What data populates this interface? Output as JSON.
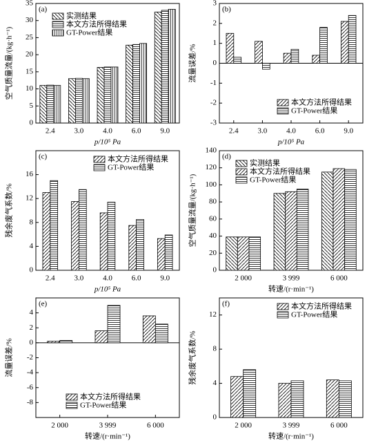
{
  "chart_data": [
    {
      "type": "bar",
      "label": "(a)",
      "ylabel": "空气质量流量/(kg·h⁻¹)",
      "xlabel": "p/10⁵ Pa",
      "categories": [
        "2.4",
        "3.0",
        "4.0",
        "6.0",
        "9.0"
      ],
      "series": [
        {
          "name": "实测结果",
          "color": "#000000",
          "hatch": "backslash",
          "values": [
            11,
            13,
            16.3,
            22.8,
            32.5
          ]
        },
        {
          "name": "本文方法所得结果",
          "color": "#000000",
          "hatch": "horizontal",
          "values": [
            11.1,
            13.1,
            16.4,
            23,
            33
          ]
        },
        {
          "name": "GT-Power结果",
          "color": "#000000",
          "hatch": "vertical",
          "values": [
            11,
            13,
            16.4,
            23.3,
            33.3
          ]
        }
      ],
      "ylim": [
        0,
        35
      ],
      "yticks": [
        0,
        5,
        10,
        15,
        20,
        25,
        30,
        35
      ],
      "legend": "upper left"
    },
    {
      "type": "bar",
      "label": "(b)",
      "ylabel": "流量误差/%",
      "xlabel": "p/10⁵ Pa",
      "categories": [
        "2.4",
        "3.0",
        "4.0",
        "6.0",
        "9.0"
      ],
      "series": [
        {
          "name": "本文方法所得结果",
          "color": "#000000",
          "hatch": "slash",
          "values": [
            1.5,
            1.1,
            0.5,
            0.4,
            2.1
          ]
        },
        {
          "name": "GT-Power结果",
          "color": "#000000",
          "hatch": "horizontal",
          "values": [
            0.3,
            -0.3,
            0.7,
            1.8,
            2.4
          ]
        }
      ],
      "ylim": [
        -3,
        3
      ],
      "yticks": [
        -3,
        -2,
        -1,
        0,
        1,
        2,
        3
      ],
      "legend": "lower right"
    },
    {
      "type": "bar",
      "label": "(c)",
      "ylabel": "残余废气系数/%",
      "xlabel": "p/10⁵ Pa",
      "categories": [
        "2.4",
        "3.0",
        "4.0",
        "6.0",
        "9.0"
      ],
      "series": [
        {
          "name": "本文方法所得结果",
          "color": "#000000",
          "hatch": "slash",
          "values": [
            13,
            11.5,
            9.6,
            7.5,
            5.3
          ]
        },
        {
          "name": "GT-Power结果",
          "color": "#000000",
          "hatch": "horizontal",
          "values": [
            15,
            13.5,
            11.4,
            8.5,
            5.9
          ]
        }
      ],
      "ylim": [
        0,
        20
      ],
      "yticks": [
        0,
        4,
        8,
        12,
        16
      ],
      "legend": "upper right"
    },
    {
      "type": "bar",
      "label": "(d)",
      "ylabel": "空气质量流量/(kg·h⁻¹)",
      "xlabel": "转速/(r·min⁻¹)",
      "categories": [
        "2 000",
        "3 999",
        "6 000"
      ],
      "series": [
        {
          "name": "实测结果",
          "color": "#000000",
          "hatch": "backslash",
          "values": [
            39,
            90,
            115
          ]
        },
        {
          "name": "本文方法所得结果",
          "color": "#000000",
          "hatch": "slash",
          "values": [
            39,
            92,
            119
          ]
        },
        {
          "name": "GT-Power结果",
          "color": "#000000",
          "hatch": "horizontal",
          "values": [
            39,
            95,
            118
          ]
        }
      ],
      "ylim": [
        0,
        140
      ],
      "yticks": [
        0,
        20,
        40,
        60,
        80,
        100,
        120,
        140
      ],
      "legend": "upper left"
    },
    {
      "type": "bar",
      "label": "(e)",
      "ylabel": "流量误差/%",
      "xlabel": "转速/(r·min⁻¹)",
      "categories": [
        "2 000",
        "3 999",
        "6 000"
      ],
      "series": [
        {
          "name": "本文方法所得结果",
          "color": "#000000",
          "hatch": "slash",
          "values": [
            0.2,
            1.6,
            3.6
          ]
        },
        {
          "name": "GT-Power结果",
          "color": "#000000",
          "hatch": "horizontal",
          "values": [
            0.3,
            5.0,
            2.5
          ]
        }
      ],
      "ylim": [
        -10,
        6
      ],
      "yticks": [
        -8,
        -6,
        -4,
        -2,
        0,
        2,
        4
      ],
      "legend": "lower center"
    },
    {
      "type": "bar",
      "label": "(f)",
      "ylabel": "残余废气系数/%",
      "xlabel": "转速/(r·min⁻¹)",
      "categories": [
        "2 000",
        "3 999",
        "6 000"
      ],
      "series": [
        {
          "name": "本文方法所得结果",
          "color": "#000000",
          "hatch": "slash",
          "values": [
            4.8,
            4.0,
            4.4
          ]
        },
        {
          "name": "GT-Power结果",
          "color": "#000000",
          "hatch": "horizontal",
          "values": [
            5.6,
            4.3,
            4.3
          ]
        }
      ],
      "ylim": [
        0,
        14
      ],
      "yticks": [
        0,
        4,
        8,
        12
      ],
      "legend": "upper right"
    }
  ]
}
